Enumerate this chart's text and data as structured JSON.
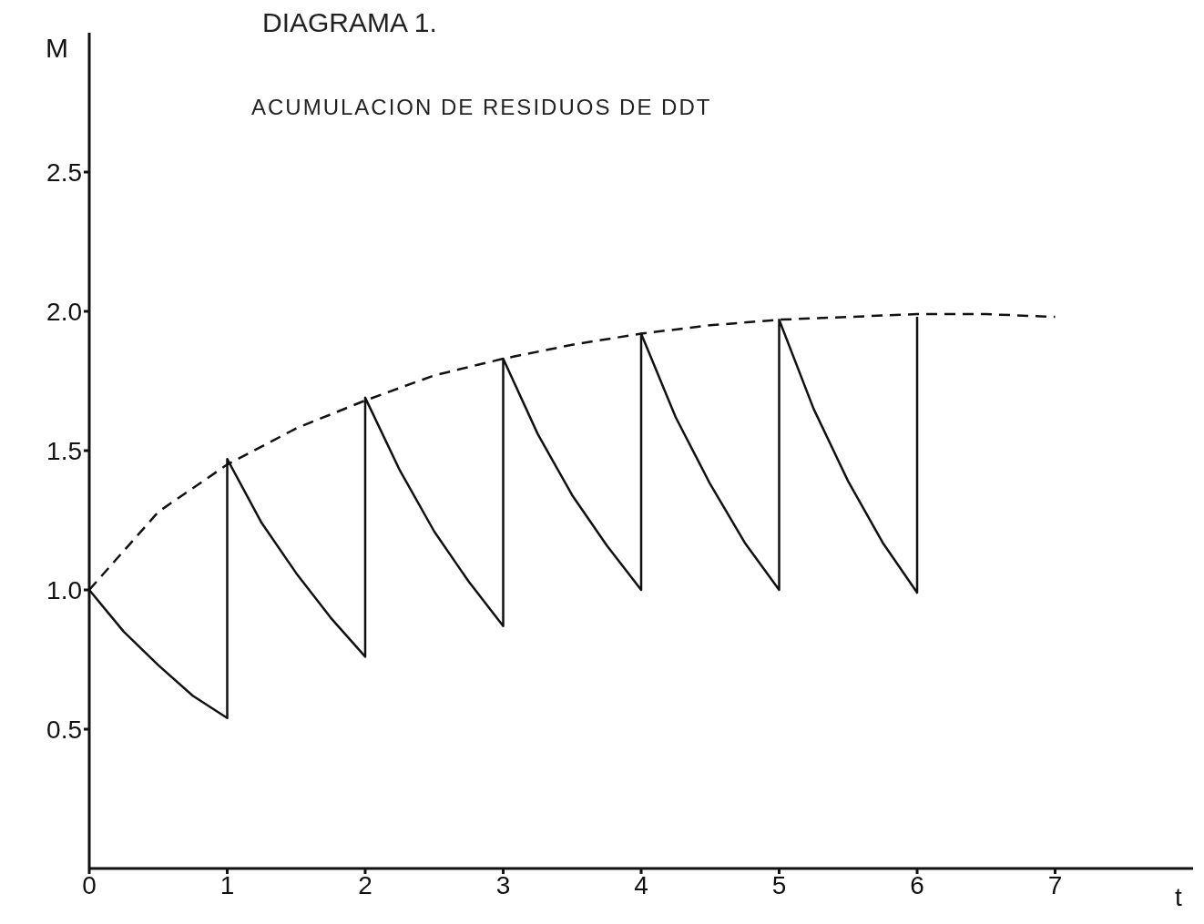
{
  "chart_data": {
    "type": "line",
    "title": "DIAGRAMA 1.",
    "subtitle": "ACUMULACION DE RESIDUOS DE DDT",
    "xlabel": "t",
    "ylabel": "M",
    "xlim": [
      0,
      8
    ],
    "xticks": [
      0,
      1,
      2,
      3,
      4,
      5,
      6,
      7
    ],
    "ylim": [
      0,
      3
    ],
    "yticks": [
      {
        "value": 0.5,
        "label": "0.5"
      },
      {
        "value": 1,
        "label": "1.0"
      },
      {
        "value": 1.5,
        "label": "1.5"
      },
      {
        "value": 2,
        "label": "2.0"
      },
      {
        "value": 2.5,
        "label": "2.5"
      }
    ],
    "marker": "none",
    "series": [
      {
        "color": "#111111",
        "line_style": "solid",
        "x": [
          0,
          0.25,
          0.5,
          0.75,
          1,
          1,
          1.25,
          1.5,
          1.75,
          2,
          2,
          2.25,
          2.5,
          2.75,
          3,
          3,
          3.25,
          3.5,
          3.75,
          4,
          4,
          4.25,
          4.5,
          4.75,
          5,
          5,
          5.25,
          5.5,
          5.75,
          6,
          6
        ],
        "values": [
          1.0,
          0.85,
          0.73,
          0.62,
          0.54,
          1.47,
          1.24,
          1.06,
          0.9,
          0.76,
          1.69,
          1.43,
          1.21,
          1.03,
          0.87,
          1.83,
          1.56,
          1.34,
          1.16,
          1.0,
          1.92,
          1.62,
          1.38,
          1.17,
          1.0,
          1.97,
          1.65,
          1.39,
          1.17,
          0.99,
          1.98
        ]
      },
      {
        "color": "#111111",
        "line_style": "dashed",
        "x": [
          0,
          0.5,
          1,
          1.5,
          2,
          2.5,
          3,
          3.5,
          4,
          4.5,
          5,
          5.5,
          6,
          6.5,
          7
        ],
        "values": [
          1.0,
          1.28,
          1.45,
          1.58,
          1.68,
          1.77,
          1.83,
          1.88,
          1.92,
          1.95,
          1.97,
          1.98,
          1.99,
          1.99,
          1.98
        ]
      }
    ]
  }
}
